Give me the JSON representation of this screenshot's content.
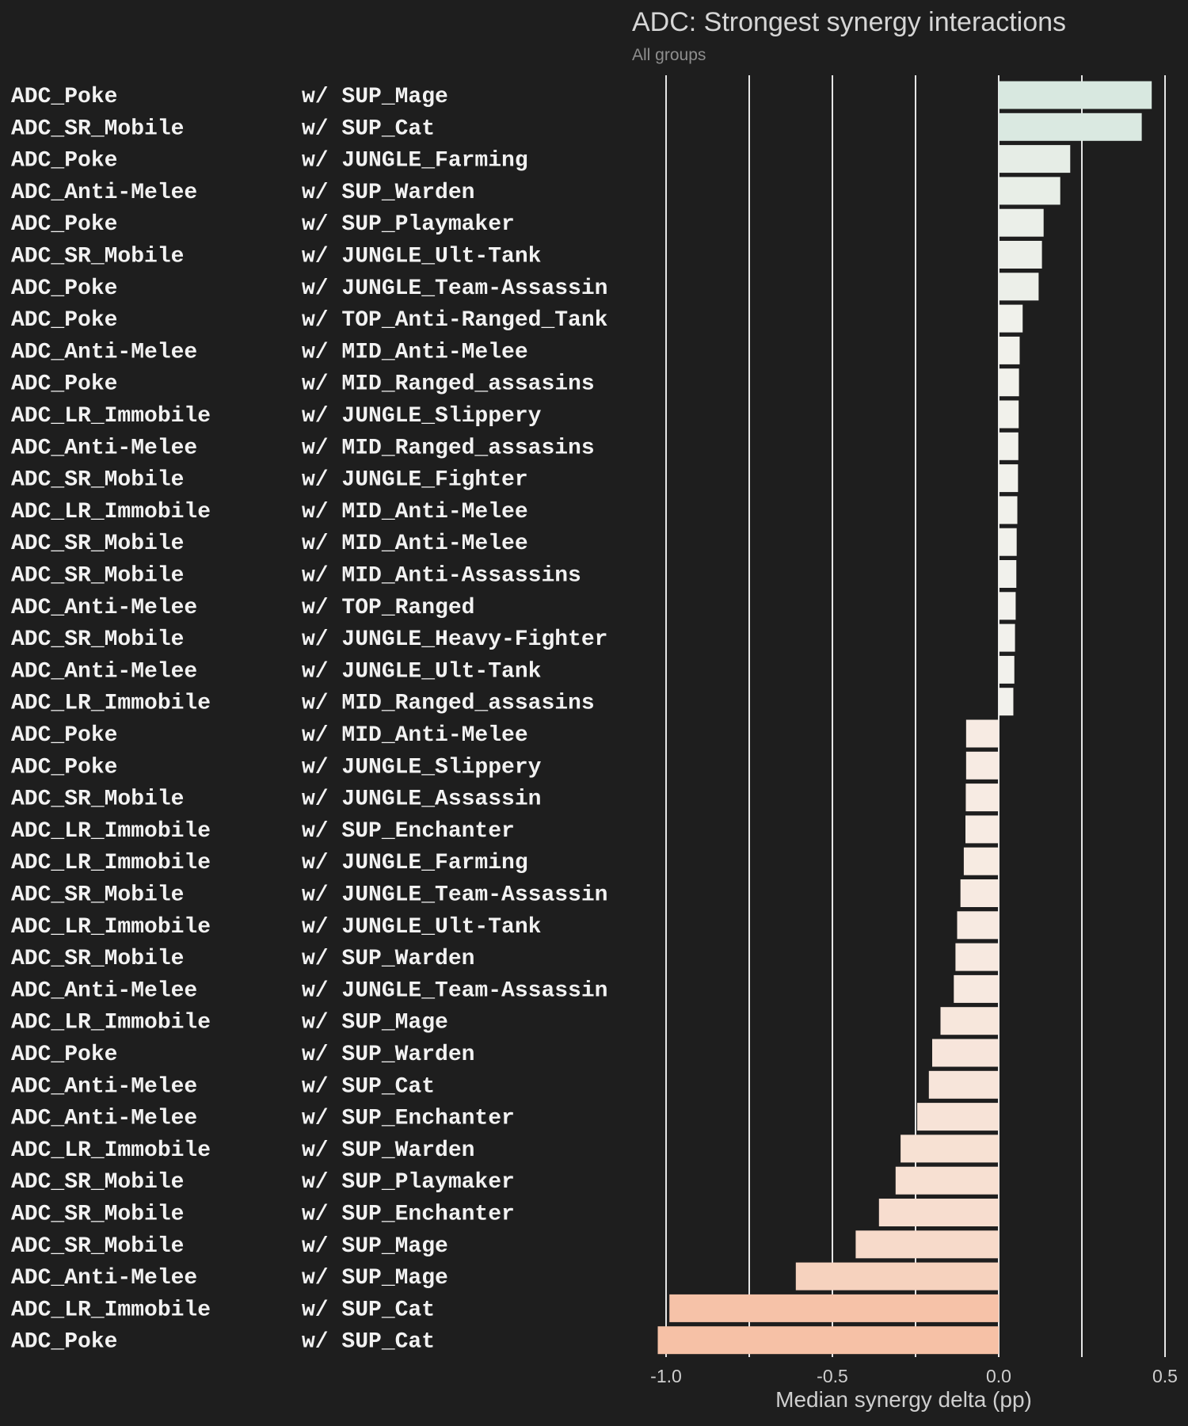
{
  "chart_data": {
    "type": "bar",
    "orientation": "horizontal",
    "title": "ADC: Strongest synergy interactions",
    "subtitle": "All groups",
    "xlabel": "Median synergy delta (pp)",
    "ylabel": "",
    "xlim": [
      -1.02,
      0.5
    ],
    "xticks": [
      -1.0,
      -0.75,
      -0.5,
      -0.25,
      0.0,
      0.25,
      0.5
    ],
    "xtick_labels": [
      "-1.0",
      "",
      "-0.5",
      "",
      "0.0",
      "",
      "0.5"
    ],
    "grid": true,
    "colors": {
      "positive": "#d8e8e0",
      "neutral": "#f7f3ee",
      "negative": "#f6c1a6",
      "background": "#1e1e1e"
    },
    "rows": [
      {
        "adc": "ADC_Poke",
        "partner": "w/ SUP_Mage",
        "value": 0.46
      },
      {
        "adc": "ADC_SR_Mobile",
        "partner": "w/ SUP_Cat",
        "value": 0.43
      },
      {
        "adc": "ADC_Poke",
        "partner": "w/ JUNGLE_Farming",
        "value": 0.215
      },
      {
        "adc": "ADC_Anti-Melee",
        "partner": "w/ SUP_Warden",
        "value": 0.185
      },
      {
        "adc": "ADC_Poke",
        "partner": "w/ SUP_Playmaker",
        "value": 0.135
      },
      {
        "adc": "ADC_SR_Mobile",
        "partner": "w/ JUNGLE_Ult-Tank",
        "value": 0.13
      },
      {
        "adc": "ADC_Poke",
        "partner": "w/ JUNGLE_Team-Assassin",
        "value": 0.12
      },
      {
        "adc": "ADC_Poke",
        "partner": "w/ TOP_Anti-Ranged_Tank",
        "value": 0.072
      },
      {
        "adc": "ADC_Anti-Melee",
        "partner": "w/ MID_Anti-Melee",
        "value": 0.063
      },
      {
        "adc": "ADC_Poke",
        "partner": "w/ MID_Ranged_assasins",
        "value": 0.061
      },
      {
        "adc": "ADC_LR_Immobile",
        "partner": "w/ JUNGLE_Slippery",
        "value": 0.06
      },
      {
        "adc": "ADC_Anti-Melee",
        "partner": "w/ MID_Ranged_assasins",
        "value": 0.059
      },
      {
        "adc": "ADC_SR_Mobile",
        "partner": "w/ JUNGLE_Fighter",
        "value": 0.058
      },
      {
        "adc": "ADC_LR_Immobile",
        "partner": "w/ MID_Anti-Melee",
        "value": 0.056
      },
      {
        "adc": "ADC_SR_Mobile",
        "partner": "w/ MID_Anti-Melee",
        "value": 0.054
      },
      {
        "adc": "ADC_SR_Mobile",
        "partner": "w/ MID_Anti-Assassins",
        "value": 0.053
      },
      {
        "adc": "ADC_Anti-Melee",
        "partner": "w/ TOP_Ranged",
        "value": 0.051
      },
      {
        "adc": "ADC_SR_Mobile",
        "partner": "w/ JUNGLE_Heavy-Fighter",
        "value": 0.049
      },
      {
        "adc": "ADC_Anti-Melee",
        "partner": "w/ JUNGLE_Ult-Tank",
        "value": 0.047
      },
      {
        "adc": "ADC_LR_Immobile",
        "partner": "w/ MID_Ranged_assasins",
        "value": 0.044
      },
      {
        "adc": "ADC_Poke",
        "partner": "w/ MID_Anti-Melee",
        "value": -0.098
      },
      {
        "adc": "ADC_Poke",
        "partner": "w/ JUNGLE_Slippery",
        "value": -0.098
      },
      {
        "adc": "ADC_SR_Mobile",
        "partner": "w/ JUNGLE_Assassin",
        "value": -0.099
      },
      {
        "adc": "ADC_LR_Immobile",
        "partner": "w/ SUP_Enchanter",
        "value": -0.1
      },
      {
        "adc": "ADC_LR_Immobile",
        "partner": "w/ JUNGLE_Farming",
        "value": -0.105
      },
      {
        "adc": "ADC_SR_Mobile",
        "partner": "w/ JUNGLE_Team-Assassin",
        "value": -0.115
      },
      {
        "adc": "ADC_LR_Immobile",
        "partner": "w/ JUNGLE_Ult-Tank",
        "value": -0.125
      },
      {
        "adc": "ADC_SR_Mobile",
        "partner": "w/ SUP_Warden",
        "value": -0.13
      },
      {
        "adc": "ADC_Anti-Melee",
        "partner": "w/ JUNGLE_Team-Assassin",
        "value": -0.135
      },
      {
        "adc": "ADC_LR_Immobile",
        "partner": "w/ SUP_Mage",
        "value": -0.175
      },
      {
        "adc": "ADC_Poke",
        "partner": "w/ SUP_Warden",
        "value": -0.2
      },
      {
        "adc": "ADC_Anti-Melee",
        "partner": "w/ SUP_Cat",
        "value": -0.21
      },
      {
        "adc": "ADC_Anti-Melee",
        "partner": "w/ SUP_Enchanter",
        "value": -0.245
      },
      {
        "adc": "ADC_LR_Immobile",
        "partner": "w/ SUP_Warden",
        "value": -0.295
      },
      {
        "adc": "ADC_SR_Mobile",
        "partner": "w/ SUP_Playmaker",
        "value": -0.31
      },
      {
        "adc": "ADC_SR_Mobile",
        "partner": "w/ SUP_Enchanter",
        "value": -0.36
      },
      {
        "adc": "ADC_SR_Mobile",
        "partner": "w/ SUP_Mage",
        "value": -0.43
      },
      {
        "adc": "ADC_Anti-Melee",
        "partner": "w/ SUP_Mage",
        "value": -0.61
      },
      {
        "adc": "ADC_LR_Immobile",
        "partner": "w/ SUP_Cat",
        "value": -0.99
      },
      {
        "adc": "ADC_Poke",
        "partner": "w/ SUP_Cat",
        "value": -1.025
      }
    ]
  }
}
